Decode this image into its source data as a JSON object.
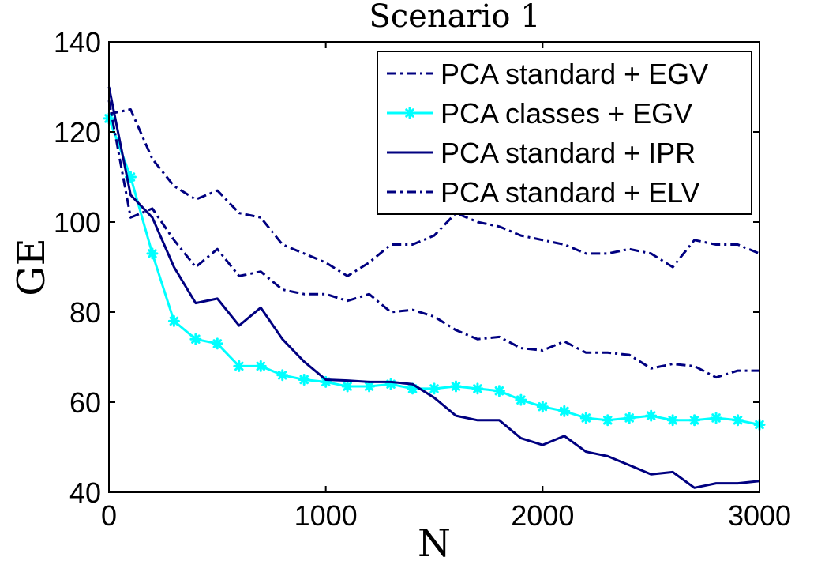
{
  "chart_data": {
    "type": "line",
    "title": "Scenario 1",
    "xlabel": "N",
    "ylabel": "GE",
    "xlim": [
      0,
      3000
    ],
    "ylim": [
      40,
      140
    ],
    "xticks": [
      "0",
      "1000",
      "2000",
      "3000"
    ],
    "yticks": [
      "40",
      "60",
      "80",
      "100",
      "120",
      "140"
    ],
    "grid": false,
    "legend_position": "top-right",
    "x": [
      0,
      100,
      200,
      300,
      400,
      500,
      600,
      700,
      800,
      900,
      1000,
      1100,
      1200,
      1300,
      1400,
      1500,
      1600,
      1700,
      1800,
      1900,
      2000,
      2100,
      2200,
      2300,
      2400,
      2500,
      2600,
      2700,
      2800,
      2900,
      3000
    ],
    "series": [
      {
        "name": "PCA standard + EGV",
        "color": "#000080",
        "style": "dashdot",
        "marker": "none",
        "values": [
          124,
          125,
          114,
          108,
          105,
          107,
          102,
          101,
          95,
          93,
          91,
          88,
          91,
          95,
          95,
          97,
          102,
          100,
          99,
          97,
          96,
          95,
          93,
          93,
          94,
          93,
          90,
          96,
          95,
          95,
          93
        ]
      },
      {
        "name": "PCA classes + EGV",
        "color": "#00FFFF",
        "style": "solid",
        "marker": "asterisk",
        "values": [
          123,
          110,
          93,
          78,
          74,
          73,
          68,
          68,
          66,
          65,
          64.5,
          63.5,
          63.5,
          64,
          63,
          63,
          63.5,
          63,
          62.5,
          60.5,
          59,
          58,
          56.5,
          56,
          56.5,
          57,
          56,
          56,
          56.5,
          56,
          55
        ]
      },
      {
        "name": "PCA standard + IPR",
        "color": "#000080",
        "style": "solid",
        "marker": "none",
        "values": [
          130,
          106,
          101,
          90,
          82,
          83,
          77,
          81,
          74,
          69,
          65,
          64.8,
          64.5,
          64.5,
          64,
          61,
          57,
          56,
          56,
          52,
          50.5,
          52.5,
          49,
          48,
          46,
          44,
          44.5,
          41,
          42,
          42,
          42.5
        ]
      },
      {
        "name": "PCA standard + ELV",
        "color": "#000080",
        "style": "dashdot",
        "marker": "none",
        "values": [
          127,
          101,
          103,
          96,
          90,
          94,
          88,
          89,
          85,
          84,
          84,
          82.5,
          84,
          80,
          80.5,
          79,
          76,
          74,
          74.5,
          72,
          71.5,
          73.5,
          71,
          71,
          70.5,
          67.5,
          68.5,
          68,
          65.5,
          67,
          67
        ]
      }
    ]
  }
}
